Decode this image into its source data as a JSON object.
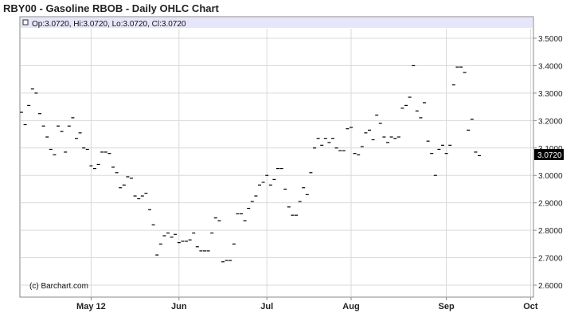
{
  "title": "RBY00 - Gasoline RBOB - Daily OHLC Chart",
  "info_bar": "Op:3.0720, Hi:3.0720, Lo:3.0720, Cl:3.0720",
  "copyright": "(c) Barchart.com",
  "last_price_label": "3.0720",
  "colors": {
    "info_bar_bg": "#e6e6fa",
    "grid": "#d9d9d9",
    "bar": "#000000",
    "last_box": "#000000"
  },
  "chart_data": {
    "type": "ohlc",
    "title": "RBY00 - Gasoline RBOB - Daily OHLC Chart",
    "ylim": [
      2.56,
      3.56
    ],
    "y_ticks": [
      "3.5000",
      "3.4000",
      "3.3000",
      "3.2000",
      "3.1000",
      "3.0000",
      "2.9000",
      "2.8000",
      "2.7000",
      "2.6000"
    ],
    "y_tick_values": [
      3.5,
      3.4,
      3.3,
      3.2,
      3.1,
      3.0,
      2.9,
      2.8,
      2.7,
      2.6
    ],
    "x_ticks": [
      {
        "label": "May 12",
        "index": 19
      },
      {
        "label": "Jun",
        "index": 43
      },
      {
        "label": "Jul",
        "index": 67
      },
      {
        "label": "Aug",
        "index": 90
      },
      {
        "label": "Sep",
        "index": 116
      },
      {
        "label": "Oct",
        "index": 139
      }
    ],
    "grid": true,
    "closes": [
      3.23,
      3.185,
      3.255,
      3.315,
      3.3,
      3.225,
      3.18,
      3.14,
      3.095,
      3.075,
      3.18,
      3.16,
      3.085,
      3.18,
      3.21,
      3.135,
      3.155,
      3.1,
      3.095,
      3.035,
      3.025,
      3.04,
      3.085,
      3.085,
      3.08,
      3.03,
      3.01,
      2.955,
      2.965,
      2.995,
      2.99,
      2.925,
      2.915,
      2.925,
      2.935,
      2.875,
      2.82,
      2.71,
      2.75,
      2.78,
      2.79,
      2.775,
      2.785,
      2.755,
      2.76,
      2.76,
      2.765,
      2.79,
      2.74,
      2.725,
      2.725,
      2.725,
      2.79,
      2.845,
      2.835,
      2.685,
      2.69,
      2.69,
      2.75,
      2.86,
      2.86,
      2.835,
      2.88,
      2.905,
      2.925,
      2.965,
      2.975,
      3.0,
      2.965,
      2.985,
      3.025,
      3.025,
      2.95,
      2.885,
      2.855,
      2.855,
      2.905,
      2.955,
      2.93,
      3.01,
      3.1,
      3.135,
      3.11,
      3.135,
      3.12,
      3.135,
      3.1,
      3.09,
      3.09,
      3.17,
      3.175,
      3.08,
      3.075,
      3.105,
      3.155,
      3.165,
      3.13,
      3.22,
      3.19,
      3.14,
      3.12,
      3.14,
      3.135,
      3.14,
      3.245,
      3.255,
      3.285,
      3.4,
      3.235,
      3.21,
      3.265,
      3.125,
      3.08,
      3.0,
      3.095,
      3.11,
      3.08,
      3.11,
      3.33,
      3.395,
      3.395,
      3.375,
      3.165,
      3.205,
      3.085,
      3.072
    ]
  }
}
